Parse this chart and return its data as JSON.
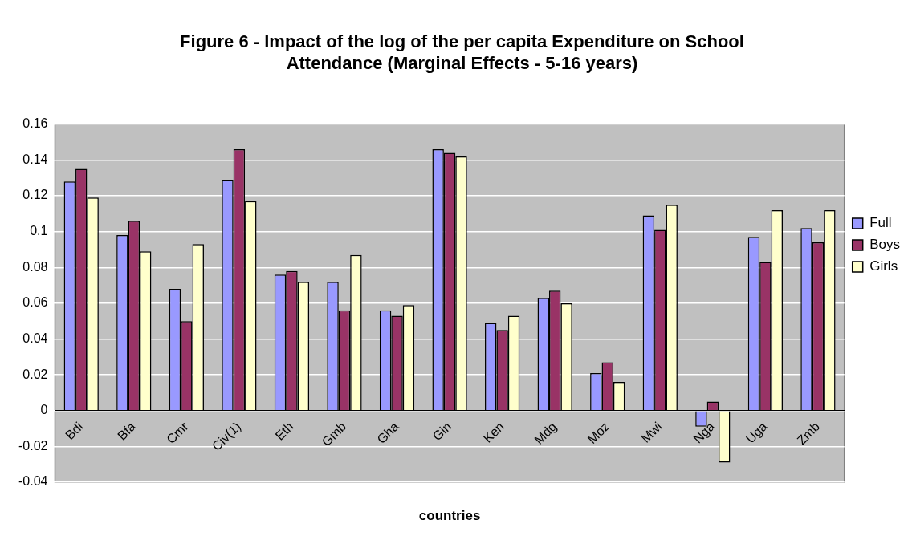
{
  "chart_data": {
    "type": "bar",
    "title": "Figure 6 - Impact of the log of the per capita Expenditure on School Attendance (Marginal Effects - 5-16 years)",
    "xlabel": "countries",
    "categories": [
      "Bdi",
      "Bfa",
      "Cmr",
      "Civ(1)",
      "Eth",
      "Gmb",
      "Gha",
      "Gin",
      "Ken",
      "Mdg",
      "Moz",
      "Mwi",
      "Nga",
      "Uga",
      "Zmb"
    ],
    "series": [
      {
        "name": "Full",
        "color": "#9999ff",
        "values": [
          0.128,
          0.098,
          0.068,
          0.129,
          0.076,
          0.072,
          0.056,
          0.146,
          0.049,
          0.063,
          0.021,
          0.109,
          -0.009,
          0.097,
          0.102
        ]
      },
      {
        "name": "Boys",
        "color": "#993366",
        "values": [
          0.135,
          0.106,
          0.05,
          0.146,
          0.078,
          0.056,
          0.053,
          0.144,
          0.045,
          0.067,
          0.027,
          0.101,
          0.005,
          0.083,
          0.094
        ]
      },
      {
        "name": "Girls",
        "color": "#ffffcc",
        "values": [
          0.119,
          0.089,
          0.093,
          0.117,
          0.072,
          0.087,
          0.059,
          0.142,
          0.053,
          0.06,
          0.016,
          0.115,
          -0.029,
          0.112,
          0.112
        ]
      }
    ],
    "ylim": [
      -0.04,
      0.16
    ],
    "yticks": [
      -0.04,
      -0.02,
      0,
      0.02,
      0.04,
      0.06,
      0.08,
      0.1,
      0.12,
      0.14,
      0.16
    ],
    "grid": "y",
    "legend": "right"
  }
}
